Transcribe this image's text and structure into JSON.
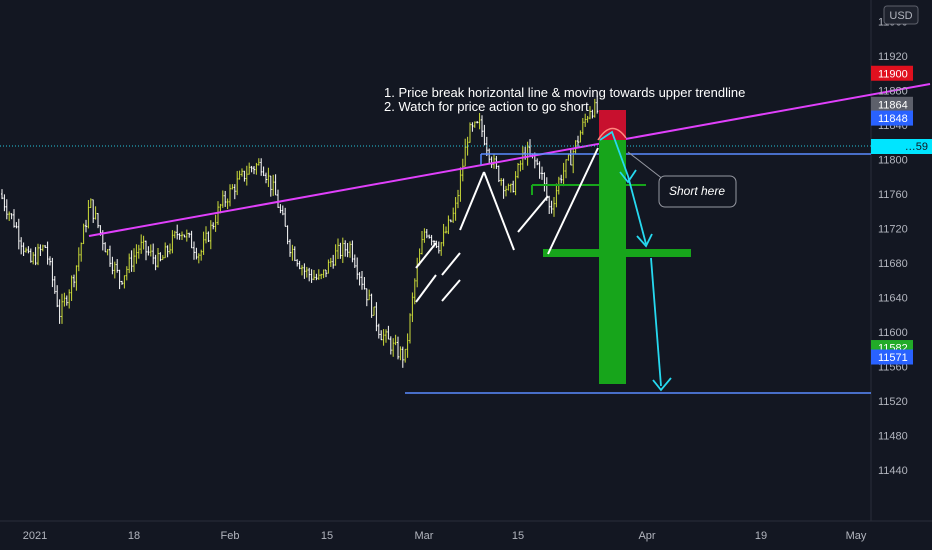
{
  "chart_data": {
    "type": "candlestick",
    "currency": "USD",
    "y_ticks": [
      11960,
      11920,
      11880,
      11840,
      11800,
      11760,
      11720,
      11680,
      11640,
      11600,
      11560,
      11520,
      11480,
      11440
    ],
    "ylim": [
      11420,
      12000
    ],
    "x_ticks": [
      "2021",
      "18",
      "Feb",
      "15",
      "Mar",
      "15",
      "Apr",
      "19",
      "May"
    ],
    "price_tags": [
      {
        "value": "11900",
        "color": "#e0101e"
      },
      {
        "value": "11864",
        "color": "#5d606b"
      },
      {
        "value": "11848",
        "color": "#2962ff"
      },
      {
        "value": "11582",
        "color": "#22ab28"
      },
      {
        "value": "11571",
        "color": "#2962ff"
      }
    ],
    "current_price_tag": {
      "value": "…59",
      "color": "#00e5ff"
    },
    "annotations": {
      "line1": "1. Price break horizontal line & moving towards upper trendline",
      "line2": "2. Watch for price action to go short",
      "callout": "Short here"
    },
    "colors": {
      "trendline": "#e040fb",
      "support": "#5b8cff",
      "up_bar": "#cddc39",
      "down_bar": "#ffffff",
      "target_zone": "#17a51b",
      "stop_zone": "#c8102e",
      "projection": "#26d9f0"
    }
  }
}
